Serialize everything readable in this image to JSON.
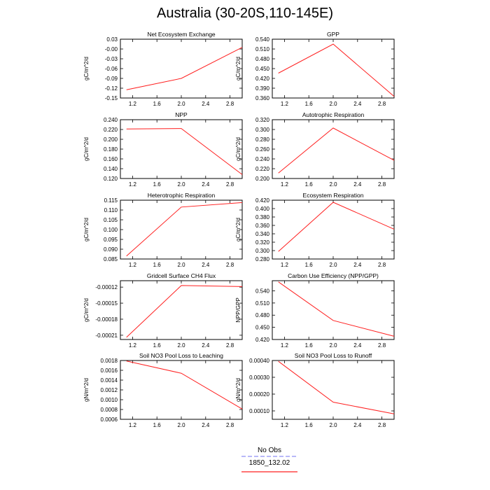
{
  "title": "Australia (30-20S,110-145E)",
  "legend": {
    "entries": [
      {
        "label": "No Obs",
        "color": "#8f8ff3",
        "dash": "dash"
      },
      {
        "label": "1850_132.02",
        "color": "#ff2020",
        "dash": "solid"
      }
    ]
  },
  "chart_data": [
    {
      "type": "line",
      "title": "Net Ecosystem Exchange",
      "ylabel": "gC/m^2/d",
      "xlim": [
        1.0,
        3.0
      ],
      "ylim": [
        -0.15,
        0.03
      ],
      "xticks": [
        "1.2",
        "1.6",
        "2.0",
        "2.4",
        "2.8"
      ],
      "xtick_values": [
        1.2,
        1.6,
        2.0,
        2.4,
        2.8
      ],
      "yticks": [
        "0.03",
        "-0.00",
        "-0.03",
        "-0.06",
        "-0.09",
        "-0.12",
        "-0.15"
      ],
      "ytick_values": [
        0.03,
        0.0,
        -0.03,
        -0.06,
        -0.09,
        -0.12,
        -0.15
      ],
      "series": [
        {
          "name": "1850_132.02",
          "x": [
            1.1,
            2.0,
            3.0
          ],
          "y": [
            -0.125,
            -0.09,
            0.005
          ]
        }
      ]
    },
    {
      "type": "line",
      "title": "GPP",
      "ylabel": "gC/m^2/d",
      "xlim": [
        1.0,
        3.0
      ],
      "ylim": [
        0.36,
        0.54
      ],
      "xticks": [
        "1.2",
        "1.6",
        "2.0",
        "2.4",
        "2.8"
      ],
      "xtick_values": [
        1.2,
        1.6,
        2.0,
        2.4,
        2.8
      ],
      "yticks": [
        "0.540",
        "0.510",
        "0.480",
        "0.450",
        "0.420",
        "0.390",
        "0.360"
      ],
      "ytick_values": [
        0.54,
        0.51,
        0.48,
        0.45,
        0.42,
        0.39,
        0.36
      ],
      "series": [
        {
          "name": "1850_132.02",
          "x": [
            1.1,
            2.0,
            3.0
          ],
          "y": [
            0.436,
            0.525,
            0.365
          ]
        }
      ]
    },
    {
      "type": "line",
      "title": "NPP",
      "ylabel": "gC/m^2/d",
      "xlim": [
        1.0,
        3.0
      ],
      "ylim": [
        0.12,
        0.24
      ],
      "xticks": [
        "1.2",
        "1.6",
        "2.0",
        "2.4",
        "2.8"
      ],
      "xtick_values": [
        1.2,
        1.6,
        2.0,
        2.4,
        2.8
      ],
      "yticks": [
        "0.240",
        "0.220",
        "0.200",
        "0.180",
        "0.160",
        "0.140",
        "0.120"
      ],
      "ytick_values": [
        0.24,
        0.22,
        0.2,
        0.18,
        0.16,
        0.14,
        0.12
      ],
      "series": [
        {
          "name": "1850_132.02",
          "x": [
            1.1,
            2.0,
            3.0
          ],
          "y": [
            0.221,
            0.222,
            0.128
          ]
        }
      ]
    },
    {
      "type": "line",
      "title": "Autotrophic Respiration",
      "ylabel": "gC/m^2/d",
      "xlim": [
        1.0,
        3.0
      ],
      "ylim": [
        0.2,
        0.32
      ],
      "xticks": [
        "1.2",
        "1.6",
        "2.0",
        "2.4",
        "2.8"
      ],
      "xtick_values": [
        1.2,
        1.6,
        2.0,
        2.4,
        2.8
      ],
      "yticks": [
        "0.320",
        "0.300",
        "0.280",
        "0.260",
        "0.240",
        "0.220",
        "0.200"
      ],
      "ytick_values": [
        0.32,
        0.3,
        0.28,
        0.26,
        0.24,
        0.22,
        0.2
      ],
      "series": [
        {
          "name": "1850_132.02",
          "x": [
            1.1,
            2.0,
            3.0
          ],
          "y": [
            0.211,
            0.303,
            0.237
          ]
        }
      ]
    },
    {
      "type": "line",
      "title": "Heterotrophic Respiration",
      "ylabel": "gC/m^2/d",
      "xlim": [
        1.0,
        3.0
      ],
      "ylim": [
        0.085,
        0.115
      ],
      "xticks": [
        "1.2",
        "1.6",
        "2.0",
        "2.4",
        "2.8"
      ],
      "xtick_values": [
        1.2,
        1.6,
        2.0,
        2.4,
        2.8
      ],
      "yticks": [
        "0.115",
        "0.110",
        "0.105",
        "0.100",
        "0.095",
        "0.090",
        "0.085"
      ],
      "ytick_values": [
        0.115,
        0.11,
        0.105,
        0.1,
        0.095,
        0.09,
        0.085
      ],
      "series": [
        {
          "name": "1850_132.02",
          "x": [
            1.1,
            2.0,
            3.0
          ],
          "y": [
            0.0865,
            0.1115,
            0.1138
          ]
        }
      ]
    },
    {
      "type": "line",
      "title": "Ecosystem Respiration",
      "ylabel": "gC/m^2/d",
      "xlim": [
        1.0,
        3.0
      ],
      "ylim": [
        0.28,
        0.42
      ],
      "xticks": [
        "1.2",
        "1.6",
        "2.0",
        "2.4",
        "2.8"
      ],
      "xtick_values": [
        1.2,
        1.6,
        2.0,
        2.4,
        2.8
      ],
      "yticks": [
        "0.420",
        "0.400",
        "0.380",
        "0.360",
        "0.340",
        "0.320",
        "0.300",
        "0.280"
      ],
      "ytick_values": [
        0.42,
        0.4,
        0.38,
        0.36,
        0.34,
        0.32,
        0.3,
        0.28
      ],
      "series": [
        {
          "name": "1850_132.02",
          "x": [
            1.1,
            2.0,
            3.0
          ],
          "y": [
            0.298,
            0.415,
            0.351
          ]
        }
      ]
    },
    {
      "type": "line",
      "title": "Gridcell Surface CH4 Flux",
      "ylabel": "gC/m^2/d",
      "xlim": [
        1.0,
        3.0
      ],
      "ylim": [
        -0.000218,
        -0.000108
      ],
      "xticks": [
        "1.2",
        "1.6",
        "2.0",
        "2.4",
        "2.8"
      ],
      "xtick_values": [
        1.2,
        1.6,
        2.0,
        2.4,
        2.8
      ],
      "yticks": [
        "-0.00012",
        "-0.00015",
        "-0.00018",
        "-0.00021"
      ],
      "ytick_values": [
        -0.00012,
        -0.00015,
        -0.00018,
        -0.00021
      ],
      "series": [
        {
          "name": "1850_132.02",
          "x": [
            1.1,
            2.0,
            3.0
          ],
          "y": [
            -0.000214,
            -0.000117,
            -0.000119
          ]
        }
      ]
    },
    {
      "type": "line",
      "title": "Carbon Use Efficiency (NPP/GPP)",
      "ylabel": "NPP/GPP",
      "xlim": [
        1.0,
        3.0
      ],
      "ylim": [
        0.42,
        0.565
      ],
      "xticks": [
        "1.2",
        "1.6",
        "2.0",
        "2.4",
        "2.8"
      ],
      "xtick_values": [
        1.2,
        1.6,
        2.0,
        2.4,
        2.8
      ],
      "yticks": [
        "0.540",
        "0.510",
        "0.480",
        "0.450",
        "0.420"
      ],
      "ytick_values": [
        0.54,
        0.51,
        0.48,
        0.45,
        0.42
      ],
      "series": [
        {
          "name": "1850_132.02",
          "x": [
            1.1,
            2.0,
            3.0
          ],
          "y": [
            0.562,
            0.467,
            0.428
          ]
        }
      ]
    },
    {
      "type": "line",
      "title": "Soil NO3 Pool Loss to Leaching",
      "ylabel": "gN/m^2/d",
      "xlim": [
        1.0,
        3.0
      ],
      "ylim": [
        0.0006,
        0.0018
      ],
      "xticks": [
        "1.2",
        "1.6",
        "2.0",
        "2.4",
        "2.8"
      ],
      "xtick_values": [
        1.2,
        1.6,
        2.0,
        2.4,
        2.8
      ],
      "yticks": [
        "0.0018",
        "0.0016",
        "0.0014",
        "0.0012",
        "0.0010",
        "0.0008",
        "0.0006"
      ],
      "ytick_values": [
        0.0018,
        0.0016,
        0.0014,
        0.0012,
        0.001,
        0.0008,
        0.0006
      ],
      "series": [
        {
          "name": "1850_132.02",
          "x": [
            1.1,
            2.0,
            3.0
          ],
          "y": [
            0.00179,
            0.00154,
            0.00081
          ]
        }
      ]
    },
    {
      "type": "line",
      "title": "Soil NO3 Pool Loss to Runoff",
      "ylabel": "gN/m^2/d",
      "xlim": [
        1.0,
        3.0
      ],
      "ylim": [
        5e-05,
        0.0004
      ],
      "xticks": [
        "1.2",
        "1.6",
        "2.0",
        "2.4",
        "2.8"
      ],
      "xtick_values": [
        1.2,
        1.6,
        2.0,
        2.4,
        2.8
      ],
      "yticks": [
        "0.00040",
        "0.00030",
        "0.00020",
        "0.00010"
      ],
      "ytick_values": [
        0.0004,
        0.0003,
        0.0002,
        0.0001
      ],
      "series": [
        {
          "name": "1850_132.02",
          "x": [
            1.1,
            2.0,
            3.0
          ],
          "y": [
            0.000395,
            0.000152,
            8.2e-05
          ]
        }
      ]
    }
  ]
}
